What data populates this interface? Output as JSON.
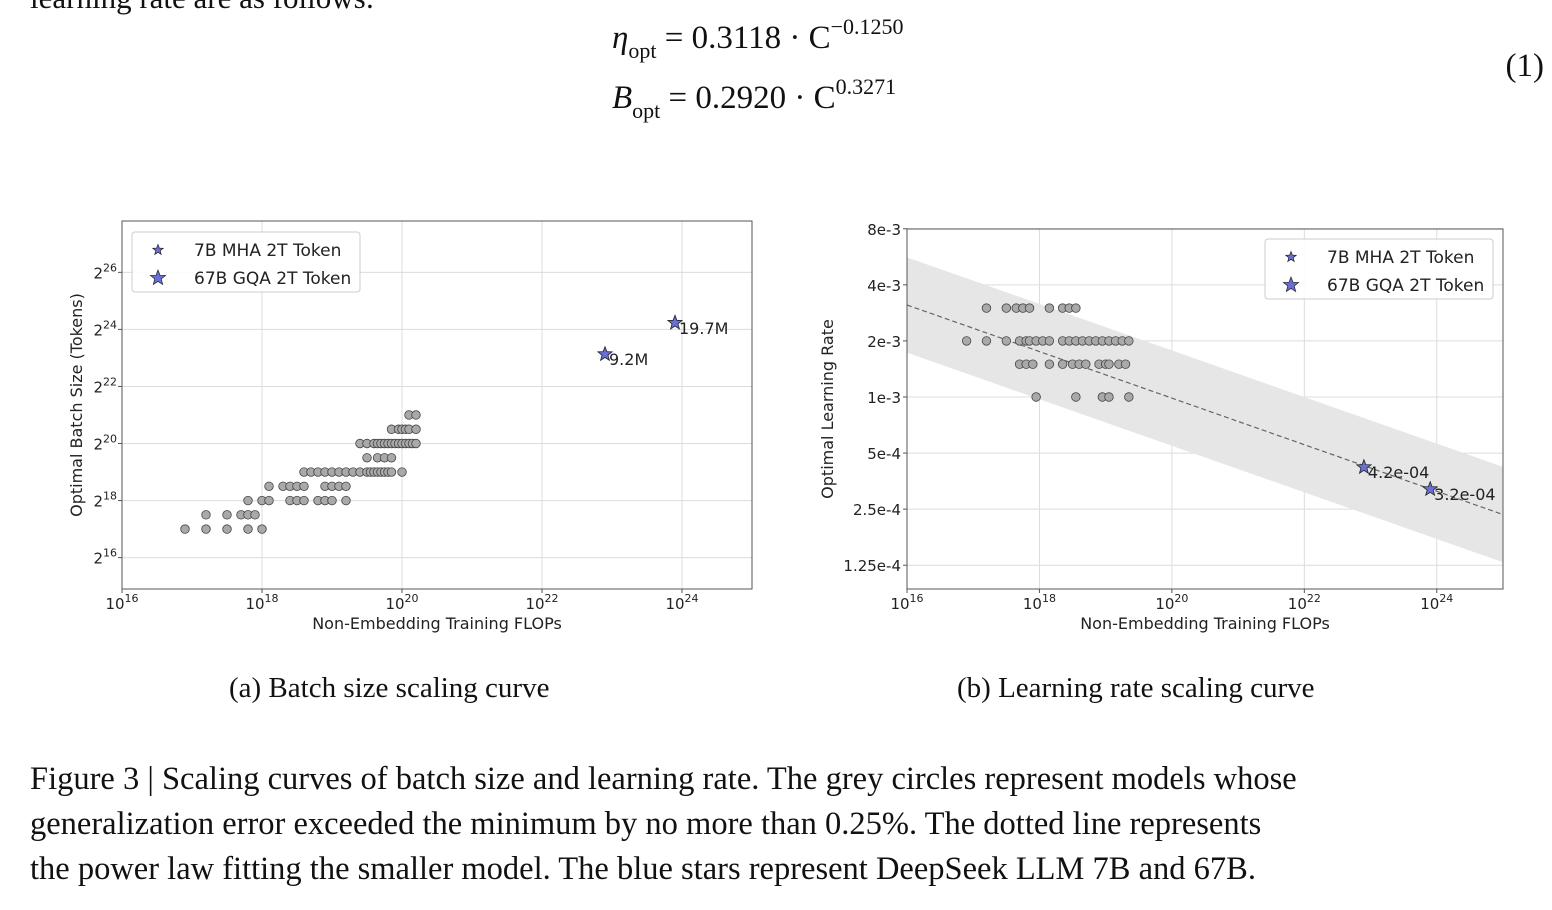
{
  "intro_text_clipped": "learning rate are as follows:",
  "equations": {
    "lr": {
      "lhs": "η",
      "sub": "opt",
      "rhs": "= 0.3118 · C",
      "exp": "−0.1250"
    },
    "bs": {
      "lhs": "B",
      "sub": "opt",
      "rhs": "= 0.2920 · C",
      "exp": "0.3271"
    },
    "number": "(1)"
  },
  "figure": {
    "subcaption_a": "(a)  Batch size scaling curve",
    "subcaption_b": "(b)  Learning rate scaling curve",
    "caption_lines": [
      "Figure 3 | Scaling curves of batch size and learning rate. The grey circles represent models whose",
      "generalization error exceeded the minimum by no more than 0.25%. The dotted line represents",
      "the power law fitting the smaller model. The blue stars represent DeepSeek LLM 7B and 67B."
    ]
  },
  "colors": {
    "dot": "#a9a9a9",
    "star": "#6a6fd6",
    "band": "#e6e6e6",
    "fit": "#666666"
  },
  "chart_data": [
    {
      "type": "scatter",
      "xlabel": "Non-Embedding Training FLOPs",
      "ylabel": "Optimal Batch Size (Tokens)",
      "x_scale": "log10",
      "y_scale": "log2",
      "xlim": [
        1e+16,
        1e+25
      ],
      "ylim_log2": [
        14.9,
        27.8
      ],
      "x_tick_exponents": [
        16,
        18,
        20,
        22,
        24
      ],
      "y_tick_exponents": [
        16,
        18,
        20,
        22,
        24,
        26
      ],
      "legend": [
        "7B MHA 2T Token",
        "67B GQA 2T Token"
      ],
      "legend_position": "upper-left",
      "grid": true,
      "fit": {
        "label": "B_opt = 0.2920 · C^0.3271",
        "coef": 0.292,
        "exp": 0.3271
      },
      "grey_points_log10x_log2y": [
        [
          16.9,
          17
        ],
        [
          17.2,
          17
        ],
        [
          17.5,
          17
        ],
        [
          17.8,
          17
        ],
        [
          18.0,
          17
        ],
        [
          17.2,
          17.5
        ],
        [
          17.5,
          17.5
        ],
        [
          17.7,
          17.5
        ],
        [
          17.8,
          17.5
        ],
        [
          17.9,
          17.5
        ],
        [
          17.8,
          18
        ],
        [
          18.0,
          18
        ],
        [
          18.1,
          18
        ],
        [
          18.4,
          18
        ],
        [
          18.5,
          18
        ],
        [
          18.6,
          18
        ],
        [
          18.8,
          18
        ],
        [
          18.9,
          18
        ],
        [
          19.0,
          18
        ],
        [
          19.2,
          18
        ],
        [
          18.1,
          18.5
        ],
        [
          18.3,
          18.5
        ],
        [
          18.4,
          18.5
        ],
        [
          18.5,
          18.5
        ],
        [
          18.6,
          18.5
        ],
        [
          18.9,
          18.5
        ],
        [
          19.0,
          18.5
        ],
        [
          19.1,
          18.5
        ],
        [
          19.2,
          18.5
        ],
        [
          18.6,
          19
        ],
        [
          18.7,
          19
        ],
        [
          18.8,
          19
        ],
        [
          18.9,
          19
        ],
        [
          19.0,
          19
        ],
        [
          19.1,
          19
        ],
        [
          19.2,
          19
        ],
        [
          19.3,
          19
        ],
        [
          19.4,
          19
        ],
        [
          19.5,
          19
        ],
        [
          19.55,
          19
        ],
        [
          19.6,
          19
        ],
        [
          19.65,
          19
        ],
        [
          19.7,
          19
        ],
        [
          19.75,
          19
        ],
        [
          19.8,
          19
        ],
        [
          19.85,
          19
        ],
        [
          20.0,
          19
        ],
        [
          19.5,
          19.5
        ],
        [
          19.65,
          19.5
        ],
        [
          19.75,
          19.5
        ],
        [
          19.85,
          19.5
        ],
        [
          19.4,
          20
        ],
        [
          19.5,
          20
        ],
        [
          19.6,
          20
        ],
        [
          19.65,
          20
        ],
        [
          19.7,
          20
        ],
        [
          19.75,
          20
        ],
        [
          19.8,
          20
        ],
        [
          19.85,
          20
        ],
        [
          19.9,
          20
        ],
        [
          19.95,
          20
        ],
        [
          20.0,
          20
        ],
        [
          20.05,
          20
        ],
        [
          20.1,
          20
        ],
        [
          20.15,
          20
        ],
        [
          20.2,
          20
        ],
        [
          19.85,
          20.5
        ],
        [
          19.95,
          20.5
        ],
        [
          20.0,
          20.5
        ],
        [
          20.05,
          20.5
        ],
        [
          20.1,
          20.5
        ],
        [
          20.2,
          20.5
        ],
        [
          20.1,
          21
        ],
        [
          20.2,
          21
        ]
      ],
      "stars": [
        {
          "series": "7B MHA 2T Token",
          "log10x": 22.9,
          "log2y": 23.13,
          "label": "9.2M"
        },
        {
          "series": "67B GQA 2T Token",
          "log10x": 23.9,
          "log2y": 24.23,
          "label": "19.7M"
        }
      ]
    },
    {
      "type": "scatter",
      "xlabel": "Non-Embedding Training FLOPs",
      "ylabel": "Optimal Learning Rate",
      "x_scale": "log10",
      "y_scale": "log2",
      "xlim": [
        1e+16,
        1e+25
      ],
      "ylim_log2": [
        -13.39,
        -6.97
      ],
      "x_tick_exponents": [
        16,
        18,
        20,
        22,
        24
      ],
      "y_ticks": [
        {
          "label": "8e-3",
          "value": 0.008
        },
        {
          "label": "4e-3",
          "value": 0.004
        },
        {
          "label": "2e-3",
          "value": 0.002
        },
        {
          "label": "1e-3",
          "value": 0.001
        },
        {
          "label": "5e-4",
          "value": 0.0005
        },
        {
          "label": "2.5e-4",
          "value": 0.00025
        },
        {
          "label": "1.25e-4",
          "value": 0.000125
        }
      ],
      "legend": [
        "7B MHA 2T Token",
        "67B GQA 2T Token"
      ],
      "legend_position": "upper-right",
      "grid": true,
      "fit": {
        "label": "η_opt = 0.3118 · C^−0.1250",
        "coef": 0.3118,
        "exp": -0.125
      },
      "grey_points_log10x_y": [
        [
          17.2,
          0.003
        ],
        [
          17.5,
          0.003
        ],
        [
          17.65,
          0.003
        ],
        [
          17.75,
          0.003
        ],
        [
          17.85,
          0.003
        ],
        [
          18.15,
          0.003
        ],
        [
          18.35,
          0.003
        ],
        [
          18.45,
          0.003
        ],
        [
          18.55,
          0.003
        ],
        [
          16.9,
          0.002
        ],
        [
          17.2,
          0.002
        ],
        [
          17.5,
          0.002
        ],
        [
          17.7,
          0.002
        ],
        [
          17.8,
          0.002
        ],
        [
          17.85,
          0.002
        ],
        [
          17.95,
          0.002
        ],
        [
          18.05,
          0.002
        ],
        [
          18.15,
          0.002
        ],
        [
          18.35,
          0.002
        ],
        [
          18.45,
          0.002
        ],
        [
          18.55,
          0.002
        ],
        [
          18.65,
          0.002
        ],
        [
          18.75,
          0.002
        ],
        [
          18.85,
          0.002
        ],
        [
          18.95,
          0.002
        ],
        [
          19.05,
          0.002
        ],
        [
          19.15,
          0.002
        ],
        [
          19.25,
          0.002
        ],
        [
          19.35,
          0.002
        ],
        [
          17.7,
          0.0015
        ],
        [
          17.8,
          0.0015
        ],
        [
          17.9,
          0.0015
        ],
        [
          18.15,
          0.0015
        ],
        [
          18.35,
          0.0015
        ],
        [
          18.5,
          0.0015
        ],
        [
          18.6,
          0.0015
        ],
        [
          18.7,
          0.0015
        ],
        [
          18.9,
          0.0015
        ],
        [
          19.0,
          0.0015
        ],
        [
          19.05,
          0.0015
        ],
        [
          19.2,
          0.0015
        ],
        [
          19.3,
          0.0015
        ],
        [
          17.95,
          0.001
        ],
        [
          18.55,
          0.001
        ],
        [
          18.95,
          0.001
        ],
        [
          19.05,
          0.001
        ],
        [
          19.35,
          0.001
        ]
      ],
      "stars": [
        {
          "series": "7B MHA 2T Token",
          "log10x": 22.9,
          "y": 0.00042,
          "label": "4.2e-04"
        },
        {
          "series": "67B GQA 2T Token",
          "log10x": 23.9,
          "y": 0.00032,
          "label": "3.2e-04"
        }
      ]
    }
  ]
}
